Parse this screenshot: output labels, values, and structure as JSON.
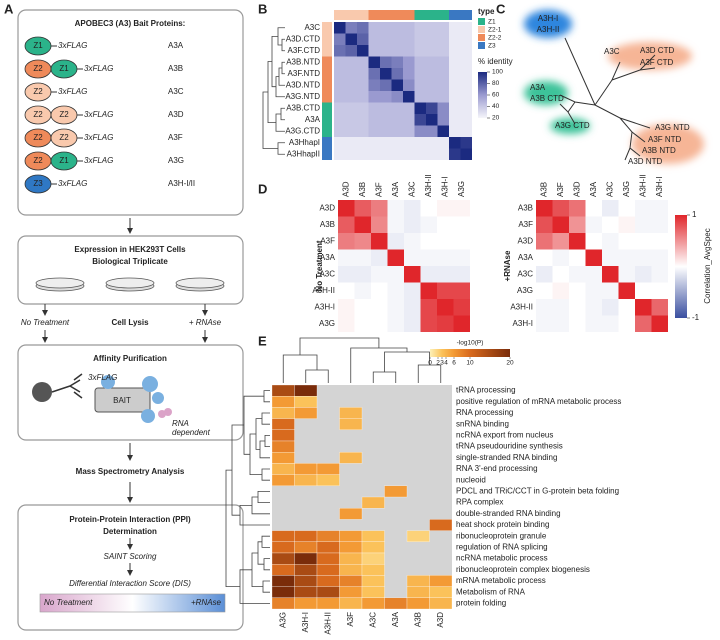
{
  "panel_labels": {
    "a": "A",
    "b": "B",
    "c": "C",
    "d": "D",
    "e": "E"
  },
  "panel_a": {
    "bait_title": "APOBEC3 (A3) Bait Proteins:",
    "constructs": [
      {
        "domains": [
          {
            "label": "Z1",
            "color": "#2bb38a"
          }
        ],
        "tag": "3xFLAG",
        "name": "A3A"
      },
      {
        "domains": [
          {
            "label": "Z2",
            "color": "#ef8a5a"
          },
          {
            "label": "Z1",
            "color": "#2bb38a"
          }
        ],
        "tag": "3xFLAG",
        "name": "A3B"
      },
      {
        "domains": [
          {
            "label": "Z2",
            "color": "#f9c9ad"
          }
        ],
        "tag": "3xFLAG",
        "name": "A3C"
      },
      {
        "domains": [
          {
            "label": "Z2",
            "color": "#f9c9ad"
          },
          {
            "label": "Z2",
            "color": "#f9c9ad"
          }
        ],
        "tag": "3xFLAG",
        "name": "A3D"
      },
      {
        "domains": [
          {
            "label": "Z2",
            "color": "#ef8a5a"
          },
          {
            "label": "Z2",
            "color": "#f9c9ad"
          }
        ],
        "tag": "3xFLAG",
        "name": "A3F"
      },
      {
        "domains": [
          {
            "label": "Z2",
            "color": "#ef8a5a"
          },
          {
            "label": "Z1",
            "color": "#2bb38a"
          }
        ],
        "tag": "3xFLAG",
        "name": "A3G"
      },
      {
        "domains": [
          {
            "label": "Z3",
            "color": "#2f78c4"
          }
        ],
        "tag": "3xFLAG",
        "name": "A3H-I/II"
      }
    ],
    "expression_title": "Expression in HEK293T Cells",
    "expression_subtitle": "Biological Triplicate",
    "no_treatment": "No Treatment",
    "cell_lysis": "Cell Lysis",
    "rnase": "+ RNAse",
    "affinity_title": "Affinity Purification",
    "affinity_tag": "3xFLAG",
    "bait_label": "BAIT",
    "rna_dependent": [
      "RNA",
      "dependent"
    ],
    "ms_title": "Mass Spectrometry Analysis",
    "ppi_title": [
      "Protein-Protein Interaction (PPI)",
      "Determination"
    ],
    "saint": "SAINT Scoring",
    "dis": "Differential Interaction Score (DIS)",
    "dis_left": "No Treatment",
    "dis_right": "+RNAse"
  },
  "panel_b": {
    "labels": [
      "A3C",
      "A3D.CTD",
      "A3F.CTD",
      "A3B.NTD",
      "A3F.NTD",
      "A3D.NTD",
      "A3G.NTD",
      "A3B.CTD",
      "A3A",
      "A3G.CTD",
      "A3HhapI",
      "A3HhapII"
    ],
    "row_types": [
      "Z2-1",
      "Z2-1",
      "Z2-1",
      "Z2-2",
      "Z2-2",
      "Z2-2",
      "Z2-2",
      "Z1",
      "Z1",
      "Z1",
      "Z3",
      "Z3"
    ],
    "type_title": "type",
    "types": [
      {
        "label": "Z1",
        "color": "#2bb38a"
      },
      {
        "label": "Z2-1",
        "color": "#f9c9ad"
      },
      {
        "label": "Z2-2",
        "color": "#ef8a5a"
      },
      {
        "label": "Z3",
        "color": "#3a78c2"
      }
    ],
    "legend_title": "% identity",
    "legend_lim": [
      20,
      100
    ],
    "legend_ticks": [
      100,
      80,
      60,
      40,
      20
    ],
    "matrix": [
      [
        100,
        70,
        75,
        45,
        45,
        45,
        45,
        40,
        40,
        40,
        25,
        25
      ],
      [
        70,
        100,
        80,
        45,
        45,
        45,
        45,
        40,
        40,
        40,
        25,
        25
      ],
      [
        75,
        80,
        100,
        45,
        45,
        45,
        45,
        40,
        40,
        40,
        25,
        25
      ],
      [
        45,
        45,
        45,
        100,
        75,
        70,
        60,
        45,
        45,
        45,
        25,
        25
      ],
      [
        45,
        45,
        45,
        75,
        100,
        75,
        60,
        45,
        45,
        45,
        25,
        25
      ],
      [
        45,
        45,
        45,
        70,
        75,
        100,
        65,
        45,
        45,
        45,
        25,
        25
      ],
      [
        45,
        45,
        45,
        60,
        60,
        65,
        100,
        45,
        45,
        45,
        25,
        25
      ],
      [
        40,
        40,
        40,
        45,
        45,
        45,
        45,
        100,
        90,
        65,
        25,
        25
      ],
      [
        40,
        40,
        40,
        45,
        45,
        45,
        45,
        90,
        100,
        65,
        25,
        25
      ],
      [
        40,
        40,
        40,
        45,
        45,
        45,
        45,
        65,
        65,
        100,
        25,
        25
      ],
      [
        25,
        25,
        25,
        25,
        25,
        25,
        25,
        25,
        25,
        25,
        100,
        95
      ],
      [
        25,
        25,
        25,
        25,
        25,
        25,
        25,
        25,
        25,
        25,
        95,
        100
      ]
    ]
  },
  "panel_c": {
    "labels": [
      "A3H-I",
      "A3H-II",
      "A3C",
      "A3D CTD",
      "A3F CTD",
      "A3A",
      "A3B CTD",
      "A3G CTD",
      "A3G NTD",
      "A3F NTD",
      "A3B NTD",
      "A3D NTD"
    ]
  },
  "panel_d": {
    "left": {
      "title": "No Treatment",
      "labels": [
        "A3D",
        "A3B",
        "A3F",
        "A3A",
        "A3C",
        "A3H-II",
        "A3H-I",
        "A3G"
      ],
      "matrix": [
        [
          1,
          0.75,
          0.6,
          -0.05,
          -0.1,
          0,
          0.05,
          0.05
        ],
        [
          0.75,
          1,
          0.55,
          -0.05,
          -0.1,
          -0.05,
          0,
          0
        ],
        [
          0.6,
          0.55,
          1,
          -0.1,
          -0.05,
          0,
          0,
          0
        ],
        [
          -0.05,
          -0.05,
          -0.1,
          1,
          -0.05,
          -0.05,
          -0.05,
          -0.05
        ],
        [
          -0.1,
          -0.1,
          -0.05,
          -0.05,
          1,
          -0.1,
          -0.1,
          -0.1
        ],
        [
          0,
          -0.05,
          0,
          -0.05,
          -0.1,
          1,
          0.85,
          0.85
        ],
        [
          0.05,
          0,
          0,
          -0.05,
          -0.1,
          0.85,
          1,
          0.9
        ],
        [
          0.05,
          0,
          0,
          -0.05,
          -0.1,
          0.85,
          0.9,
          1
        ]
      ]
    },
    "right": {
      "title": "+RNAse",
      "labels": [
        "A3B",
        "A3F",
        "A3D",
        "A3A",
        "A3C",
        "A3G",
        "A3H-II",
        "A3H-I"
      ],
      "matrix": [
        [
          1,
          0.8,
          0.65,
          0,
          -0.1,
          0,
          -0.05,
          -0.05
        ],
        [
          0.8,
          1,
          0.5,
          -0.05,
          0,
          0.05,
          -0.05,
          -0.05
        ],
        [
          0.65,
          0.5,
          1,
          0,
          -0.05,
          0,
          0,
          0
        ],
        [
          0,
          -0.05,
          0,
          1,
          -0.05,
          -0.05,
          -0.05,
          -0.05
        ],
        [
          -0.1,
          0,
          -0.05,
          -0.05,
          1,
          -0.05,
          -0.1,
          -0.05
        ],
        [
          0,
          0.05,
          0,
          -0.05,
          -0.05,
          1,
          0,
          0
        ],
        [
          -0.05,
          -0.05,
          0,
          -0.05,
          -0.1,
          0,
          1,
          0.7
        ],
        [
          -0.05,
          -0.05,
          0,
          -0.05,
          -0.05,
          0,
          0.7,
          1
        ]
      ]
    },
    "colorbar_title": "Correlation_AvgSpec",
    "colorbar_lim": [
      -1,
      1
    ],
    "colorbar_ticks": [
      1,
      -1
    ]
  },
  "panel_e": {
    "columns": [
      "A3G",
      "A3H-I",
      "A3H-II",
      "A3F",
      "A3C",
      "A3A",
      "A3B",
      "A3D"
    ],
    "rows": [
      "tRNA processing",
      "positive regulation of mRNA metabolic process",
      "RNA processing",
      "snRNA binding",
      "ncRNA export from nucleus",
      "tRNA pseudouridine synthesis",
      "single-stranded RNA binding",
      "RNA 3'-end processing",
      "nucleoid",
      "PDCL and TRiC/CCT in G-protein beta folding",
      "RPA complex",
      "double-stranded RNA binding",
      "heat shock protein binding",
      "ribonucleoprotein granule",
      "regulation of RNA splicing",
      "ncRNA metabolic process",
      "ribonucleoprotein complex biogenesis",
      "mRNA metabolic process",
      "Metabolism of RNA",
      "protein folding"
    ],
    "matrix": [
      [
        15,
        20,
        null,
        null,
        null,
        null,
        null,
        null
      ],
      [
        6,
        3,
        null,
        null,
        null,
        null,
        null,
        null
      ],
      [
        4,
        6,
        null,
        4,
        null,
        null,
        null,
        null
      ],
      [
        10,
        null,
        null,
        4,
        null,
        null,
        null,
        null
      ],
      [
        10,
        null,
        null,
        null,
        null,
        null,
        null,
        null
      ],
      [
        8,
        null,
        null,
        null,
        null,
        null,
        null,
        null
      ],
      [
        6,
        null,
        null,
        4,
        null,
        null,
        null,
        null
      ],
      [
        4,
        6,
        6,
        null,
        null,
        null,
        null,
        null
      ],
      [
        6,
        4,
        3,
        null,
        null,
        null,
        null,
        null
      ],
      [
        null,
        null,
        null,
        null,
        null,
        6,
        null,
        null
      ],
      [
        null,
        null,
        null,
        null,
        4,
        null,
        null,
        null
      ],
      [
        null,
        null,
        null,
        6,
        null,
        null,
        null,
        null
      ],
      [
        null,
        null,
        null,
        null,
        null,
        null,
        null,
        10
      ],
      [
        10,
        10,
        8,
        6,
        3,
        null,
        2,
        null
      ],
      [
        10,
        8,
        10,
        6,
        3,
        null,
        null,
        null
      ],
      [
        15,
        20,
        10,
        4,
        2,
        null,
        null,
        null
      ],
      [
        10,
        15,
        10,
        4,
        3,
        null,
        null,
        null
      ],
      [
        20,
        15,
        10,
        8,
        3,
        null,
        4,
        6
      ],
      [
        20,
        15,
        15,
        6,
        3,
        null,
        4,
        3
      ],
      [
        8,
        6,
        6,
        4,
        6,
        8,
        6,
        4
      ]
    ],
    "colorbar_title": "-log10(P)",
    "colorbar_lim": [
      0,
      20
    ],
    "colorbar_ticks": [
      0,
      2,
      3,
      4,
      6,
      10,
      20
    ]
  }
}
